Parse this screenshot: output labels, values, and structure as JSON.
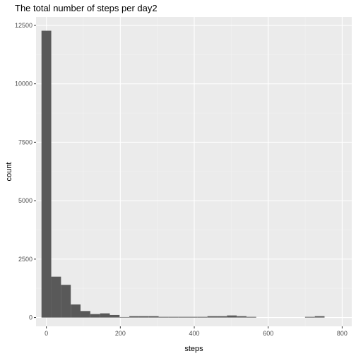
{
  "chart_data": {
    "type": "bar",
    "title": "The total number of steps per day2",
    "xlabel": "steps",
    "ylabel": "count",
    "xlim": [
      -28,
      826
    ],
    "ylim": [
      -375,
      12860
    ],
    "xticks": [
      0,
      200,
      400,
      600,
      800
    ],
    "yticks": [
      0,
      2500,
      5000,
      7500,
      10000,
      12500
    ],
    "bin_width": 26.4,
    "bin_starts": [
      -13.2,
      13.2,
      39.6,
      66.0,
      92.4,
      118.8,
      145.2,
      171.6,
      198.0,
      224.4,
      250.8,
      277.2,
      303.6,
      330.0,
      356.4,
      382.8,
      409.2,
      435.6,
      462.0,
      488.4,
      514.8,
      541.2,
      567.6,
      594.0,
      620.4,
      646.8,
      673.2,
      699.6,
      726.0,
      752.4,
      778.8
    ],
    "values": [
      12270,
      1750,
      1400,
      560,
      280,
      150,
      180,
      110,
      20,
      60,
      60,
      60,
      30,
      30,
      30,
      30,
      30,
      60,
      60,
      90,
      60,
      30,
      0,
      0,
      0,
      0,
      0,
      30,
      60,
      0,
      0
    ],
    "grid": true,
    "legend": "none",
    "colors": {
      "bar": "#595959",
      "panel": "#ebebeb",
      "grid_major": "#ffffff",
      "grid_minor": "#f2f2f2",
      "tick_text": "#4d4d4d"
    }
  }
}
